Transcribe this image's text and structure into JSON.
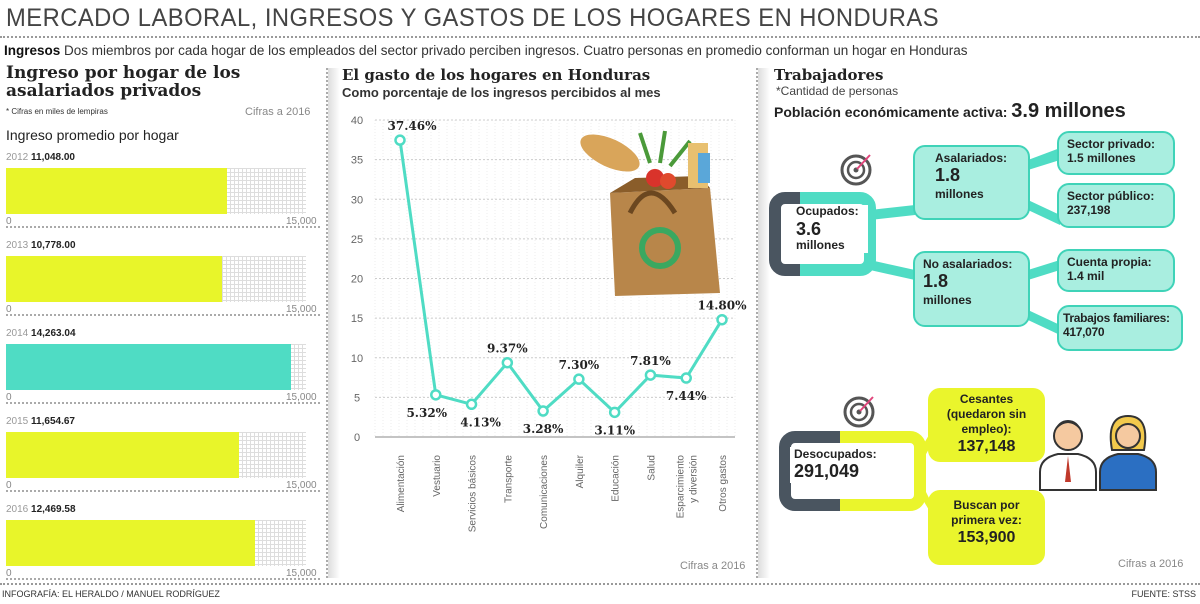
{
  "title": "MERCADO LABORAL, INGRESOS Y GASTOS DE LOS HOGARES EN HONDURAS",
  "intro": {
    "lead": "Ingresos",
    "text": " Dos miembros por cada hogar de los empleados del sector privado perciben ingresos. Cuatro personas en promedio conforman un hogar en Honduras"
  },
  "left": {
    "heading": "Ingreso por hogar de los asalariados privados",
    "note": "* Cifras en miles de lempiras",
    "cifras": "Cifras a 2016",
    "subheading": "Ingreso promedio por hogar"
  },
  "colors": {
    "yellow": "#e8f52a",
    "teal": "#4fdcc4",
    "dark": "#4a5560",
    "box": "#a9eee0"
  },
  "chart_data": [
    {
      "type": "bar",
      "orientation": "horizontal",
      "categories": [
        "2012",
        "2013",
        "2014",
        "2015",
        "2016"
      ],
      "values": [
        11048.0,
        10778.0,
        14263.04,
        11654.67,
        12469.58
      ],
      "labels": [
        "11,048.00",
        "10,778.00",
        "14,263.04",
        "11,654.67",
        "12,469.58"
      ],
      "highlight": "2014",
      "xlim": [
        0,
        15000
      ],
      "tick_labels": [
        "0",
        "15,000"
      ]
    },
    {
      "type": "line",
      "title": "El gasto de los hogares en Honduras",
      "subtitle": "Como porcentaje de los ingresos percibidos al mes",
      "categories": [
        "Alimentación",
        "Vestuario",
        "Servicios básicos",
        "Transporte",
        "Comunicaciones",
        "Alquiler",
        "Educación",
        "Salud",
        "Esparcimiento y diversión",
        "Otros gastos"
      ],
      "values": [
        37.46,
        5.32,
        4.13,
        9.37,
        3.28,
        7.3,
        3.11,
        7.81,
        7.44,
        14.8
      ],
      "labels": [
        "37.46%",
        "5.32%",
        "4.13%",
        "9.37%",
        "3.28%",
        "7.30%",
        "3.11%",
        "7.81%",
        "7.44%",
        "14.80%"
      ],
      "ylim": [
        0,
        40
      ],
      "yticks": [
        "0",
        "5",
        "10",
        "15",
        "20",
        "25",
        "30",
        "35",
        "40"
      ],
      "grid": true,
      "note": "Cifras a 2016"
    }
  ],
  "right": {
    "heading": "Trabajadores",
    "note": "*Cantidad de personas",
    "pea_label": "Población económicamente activa:",
    "pea_value": "3.9 millones",
    "ocupados": {
      "label": "Ocupados:",
      "value": "3.6",
      "unit": "millones"
    },
    "asalariados": {
      "label": "Asalariados:",
      "value": "1.8",
      "unit": "millones"
    },
    "no_asalariados": {
      "label": "No asalariados:",
      "value": "1.8",
      "unit": "millones"
    },
    "privado": {
      "label": "Sector privado:",
      "value": "1.5 millones"
    },
    "publico": {
      "label": "Sector público:",
      "value": "237,198"
    },
    "propia": {
      "label": "Cuenta propia:",
      "value": "1.4 mil"
    },
    "familiares": {
      "label": "Trabajos familiares:",
      "value": "417,070"
    },
    "desocupados": {
      "label": "Desocupados:",
      "value": "291,049"
    },
    "cesantes": {
      "label": "Cesantes (quedaron sin empleo):",
      "value": "137,148"
    },
    "buscan": {
      "label": "Buscan por primera vez:",
      "value": "153,900"
    },
    "cifras": "Cifras a 2016"
  },
  "footer": {
    "credit": "INFOGRAFÍA: EL HERALDO / MANUEL RODRÍGUEZ",
    "source": "FUENTE: STSS"
  }
}
